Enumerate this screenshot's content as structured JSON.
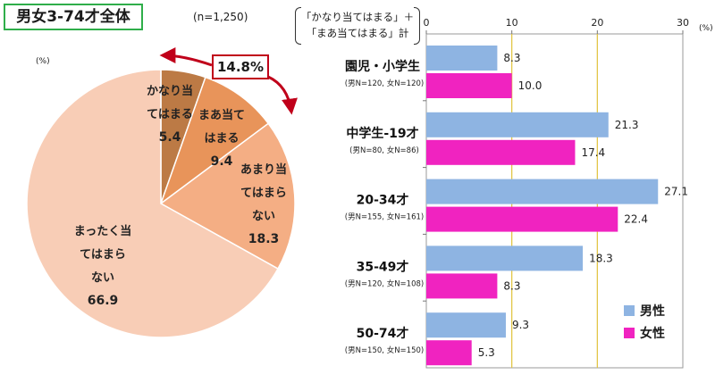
{
  "title": "男女3-74才全体",
  "sample_size": "(n=1,250)",
  "pie_unit": "(%)",
  "callout": "14.8%",
  "bracket_label": [
    "「かなり当てはまる」＋",
    "「まあ当てはまる」計"
  ],
  "bar_unit": "(%)",
  "colors": {
    "pie": [
      "#bc7a45",
      "#e8945a",
      "#f4ae84",
      "#f8cdb6"
    ],
    "male": "#8eb4e2",
    "female": "#f023c0",
    "gridline": "#e0c23a",
    "callout_border": "#c0001a",
    "title_border": "#2fae4a"
  },
  "chart_data": [
    {
      "type": "pie",
      "slices": [
        {
          "label_lines": [
            "かなり当",
            "てはまる"
          ],
          "value": 5.4,
          "value_text": "5.4"
        },
        {
          "label_lines": [
            "まあ当て",
            "はまる"
          ],
          "value": 9.4,
          "value_text": "9.4"
        },
        {
          "label_lines": [
            "あまり当",
            "てはまら",
            "ない"
          ],
          "value": 18.3,
          "value_text": "18.3"
        },
        {
          "label_lines": [
            "まったく当",
            "てはまら",
            "ない"
          ],
          "value": 66.9,
          "value_text": "66.9"
        }
      ]
    },
    {
      "type": "bar",
      "orientation": "horizontal",
      "xlim": [
        0,
        30
      ],
      "ticks": [
        0,
        10,
        20,
        30
      ],
      "categories": [
        {
          "label": "園児・小学生",
          "sub": "(男N=120, 女N=120)"
        },
        {
          "label": "中学生-19才",
          "sub": "(男N=80, 女N=86)"
        },
        {
          "label": "20-34才",
          "sub": "(男N=155, 女N=161)"
        },
        {
          "label": "35-49才",
          "sub": "(男N=120, 女N=108)"
        },
        {
          "label": "50-74才",
          "sub": "(男N=150, 女N=150)"
        }
      ],
      "series": [
        {
          "name": "男性",
          "values": [
            8.3,
            21.3,
            27.1,
            18.3,
            9.3
          ]
        },
        {
          "name": "女性",
          "values": [
            10.0,
            17.4,
            22.4,
            8.3,
            5.3
          ]
        }
      ]
    }
  ]
}
